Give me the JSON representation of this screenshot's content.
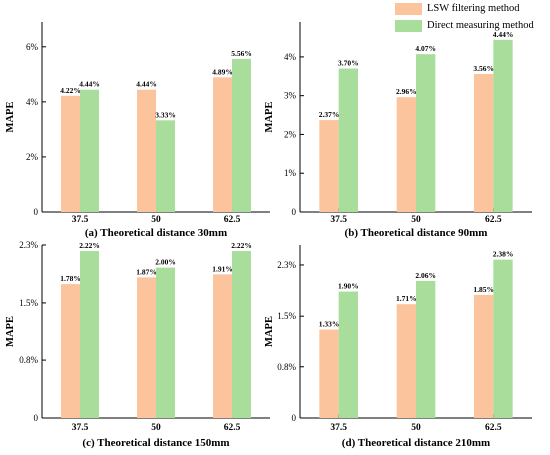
{
  "legend": {
    "items": [
      {
        "label": "LSW filtering method",
        "color": "#FBC49C"
      },
      {
        "label": "Direct measuring method",
        "color": "#A9DD9C"
      }
    ]
  },
  "chart_data": [
    {
      "type": "bar",
      "title": "(a) Theoretical distance 30mm",
      "ylabel": "MAPE",
      "categories": [
        "37.5",
        "50",
        "62.5"
      ],
      "series": [
        {
          "name": "LSW filtering method",
          "values": [
            4.22,
            4.44,
            4.89
          ],
          "labels": [
            "4.22%",
            "4.44%",
            "4.89%"
          ]
        },
        {
          "name": "Direct measuring method",
          "values": [
            4.44,
            3.33,
            5.56
          ],
          "labels": [
            "4.44%",
            "3.33%",
            "5.56%"
          ]
        }
      ],
      "ylim": [
        0,
        6.9
      ],
      "yticks": [
        0,
        2,
        4,
        6
      ],
      "ytick_labels": [
        "0",
        "2%",
        "4%",
        "6%"
      ]
    },
    {
      "type": "bar",
      "title": "(b) Theoretical distance 90mm",
      "ylabel": "MAPE",
      "categories": [
        "37.5",
        "50",
        "62.5"
      ],
      "series": [
        {
          "name": "LSW filtering method",
          "values": [
            2.37,
            2.96,
            3.56
          ],
          "labels": [
            "2.37%",
            "2.96%",
            "3.56%"
          ]
        },
        {
          "name": "Direct measuring method",
          "values": [
            3.7,
            4.07,
            4.44
          ],
          "labels": [
            "3.70%",
            "4.07%",
            "4.44%"
          ]
        }
      ],
      "ylim": [
        0,
        4.9
      ],
      "yticks": [
        0,
        1,
        2,
        3,
        4
      ],
      "ytick_labels": [
        "0",
        "1%",
        "2%",
        "3%",
        "4%"
      ]
    },
    {
      "type": "bar",
      "title": "(c) Theoretical distance 150mm",
      "ylabel": "MAPE",
      "categories": [
        "37.5",
        "50",
        "62.5"
      ],
      "series": [
        {
          "name": "LSW filtering method",
          "values": [
            1.78,
            1.87,
            1.91
          ],
          "labels": [
            "1.78%",
            "1.87%",
            "1.91%"
          ]
        },
        {
          "name": "Direct measuring method",
          "values": [
            2.22,
            2.0,
            2.22
          ],
          "labels": [
            "2.22%",
            "2.00%",
            "2.22%"
          ]
        }
      ],
      "ylim": [
        0,
        2.3
      ],
      "yticks": [
        0,
        0.77,
        1.53,
        2.3
      ],
      "ytick_labels": [
        "0",
        "0.8%",
        "1.5%",
        "2.3%"
      ]
    },
    {
      "type": "bar",
      "title": "(d) Theoretical distance 210mm",
      "ylabel": "MAPE",
      "categories": [
        "37.5",
        "50",
        "62.5"
      ],
      "series": [
        {
          "name": "LSW filtering method",
          "values": [
            1.33,
            1.71,
            1.85
          ],
          "labels": [
            "1.33%",
            "1.71%",
            "1.85%"
          ]
        },
        {
          "name": "Direct measuring method",
          "values": [
            1.9,
            2.06,
            2.38
          ],
          "labels": [
            "1.90%",
            "2.06%",
            "2.38%"
          ]
        }
      ],
      "ylim": [
        0,
        2.6
      ],
      "yticks": [
        0,
        0.77,
        1.53,
        2.3
      ],
      "ytick_labels": [
        "0",
        "0.8%",
        "1.5%",
        "2.3%"
      ]
    }
  ]
}
